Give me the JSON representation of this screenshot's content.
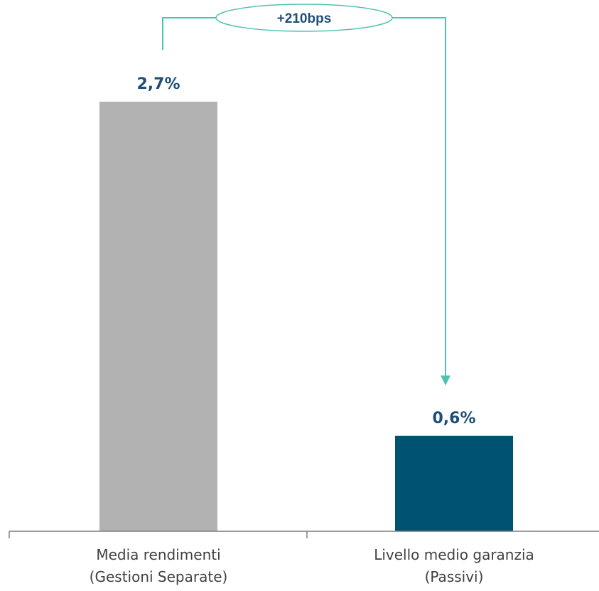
{
  "chart_data": {
    "type": "bar",
    "categories": [
      [
        "Media rendimenti",
        "(Gestioni Separate)"
      ],
      [
        "Livello medio garanzia",
        "(Passivi)"
      ]
    ],
    "values": [
      2.7,
      0.6
    ],
    "value_labels": [
      "2,7%",
      "0,6%"
    ],
    "bar_colors": [
      "#b2b2b2",
      "#005272"
    ],
    "ylim": [
      0,
      2.7
    ],
    "grid": false,
    "annotation": {
      "label": "+210bps",
      "color": "#4fc3b0",
      "from_bar": 0,
      "to_bar": 1
    }
  }
}
